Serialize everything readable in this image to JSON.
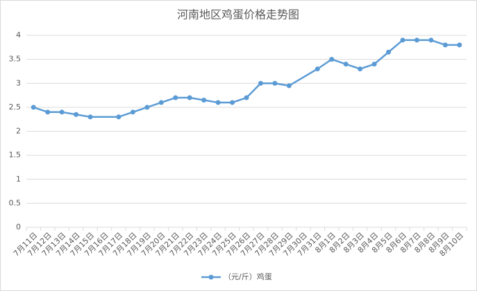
{
  "chart_data": {
    "type": "line",
    "title": "河南地区鸡蛋价格走势图",
    "categories": [
      "7月11日",
      "7月12日",
      "7月13日",
      "7月14日",
      "7月15日",
      "7月16日",
      "7月17日",
      "7月18日",
      "7月19日",
      "7月20日",
      "7月21日",
      "7月22日",
      "7月23日",
      "7月24日",
      "7月25日",
      "7月26日",
      "7月27日",
      "7月28日",
      "7月29日",
      "7月30日",
      "7月31日",
      "8月1日",
      "8月2日",
      "8月3日",
      "8月4日",
      "8月5日",
      "8月6日",
      "8月7日",
      "8月8日",
      "8月9日",
      "8月10日"
    ],
    "series": [
      {
        "name": "（元/斤）鸡蛋",
        "color": "#5b9bd5",
        "values": [
          2.5,
          2.4,
          2.4,
          2.35,
          2.3,
          null,
          2.3,
          2.4,
          2.5,
          2.6,
          2.7,
          2.7,
          2.65,
          2.6,
          2.6,
          2.7,
          3.0,
          3.0,
          2.95,
          null,
          3.3,
          3.5,
          3.4,
          3.3,
          3.4,
          3.65,
          3.9,
          3.9,
          3.9,
          3.8,
          3.8
        ]
      }
    ],
    "ylim": [
      0,
      4
    ],
    "yticks": [
      0,
      0.5,
      1,
      1.5,
      2,
      2.5,
      3,
      3.5,
      4
    ],
    "grid": true,
    "span_gaps": true,
    "legend": "bottom"
  }
}
